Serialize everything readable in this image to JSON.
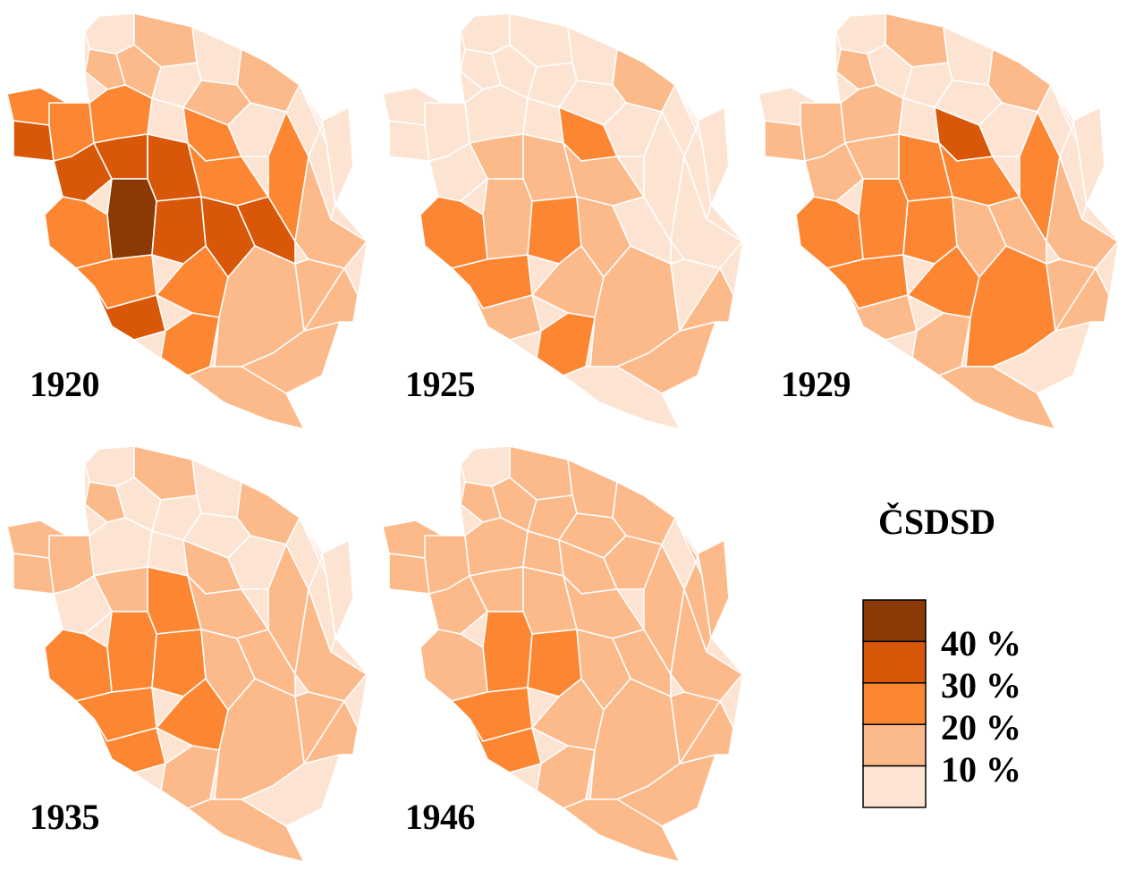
{
  "party": "ČSDSD",
  "legend": {
    "colors": [
      "#fde3d2",
      "#fcb98a",
      "#fc8632",
      "#d85708",
      "#8c3a05"
    ],
    "labels": [
      "10 %",
      "20 %",
      "30 %",
      "40 %"
    ]
  },
  "maps": [
    {
      "year": "1920",
      "levels": [
        0,
        1,
        1,
        0,
        1,
        2,
        3,
        2,
        1,
        0,
        1,
        2,
        0,
        2,
        0,
        3,
        3,
        3,
        2,
        4,
        3,
        2,
        3,
        3,
        2,
        1,
        0,
        0,
        1,
        2,
        3,
        2,
        2,
        1,
        1,
        1,
        1
      ]
    },
    {
      "year": "1925",
      "levels": [
        0,
        0,
        0,
        0,
        1,
        0,
        0,
        0,
        0,
        0,
        0,
        0,
        0,
        2,
        0,
        0,
        1,
        1,
        1,
        1,
        2,
        2,
        1,
        0,
        0,
        0,
        0,
        0,
        0,
        2,
        1,
        1,
        2,
        1,
        1,
        0,
        1
      ]
    },
    {
      "year": "1929",
      "levels": [
        0,
        1,
        1,
        0,
        1,
        0,
        1,
        1,
        0,
        0,
        0,
        1,
        0,
        3,
        0,
        1,
        1,
        2,
        2,
        2,
        2,
        2,
        1,
        1,
        2,
        1,
        0,
        0,
        1,
        2,
        1,
        2,
        1,
        2,
        0,
        1,
        1
      ]
    },
    {
      "year": "1935",
      "levels": [
        0,
        1,
        1,
        0,
        1,
        1,
        1,
        1,
        0,
        0,
        0,
        0,
        0,
        1,
        0,
        0,
        1,
        2,
        1,
        2,
        2,
        2,
        1,
        1,
        1,
        1,
        0,
        0,
        1,
        2,
        2,
        2,
        1,
        1,
        0,
        1,
        1
      ]
    },
    {
      "year": "1946",
      "levels": [
        0,
        1,
        1,
        1,
        1,
        1,
        1,
        1,
        1,
        1,
        1,
        1,
        1,
        1,
        1,
        1,
        1,
        1,
        1,
        2,
        2,
        1,
        1,
        1,
        1,
        1,
        1,
        1,
        1,
        2,
        2,
        1,
        1,
        1,
        1,
        1,
        1
      ]
    }
  ]
}
